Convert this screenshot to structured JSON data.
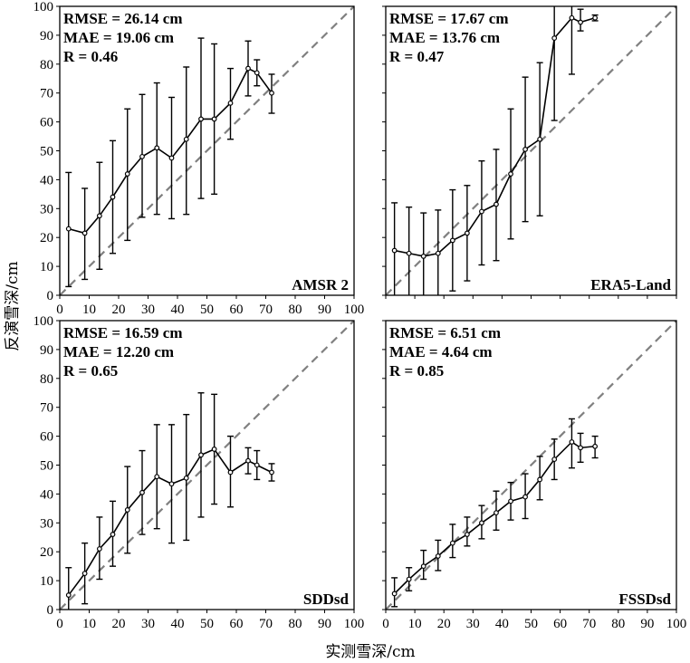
{
  "figure": {
    "xlabel": "实测雪深/cm",
    "ylabel": "反演雪深/cm"
  },
  "colors": {
    "line": "#000000",
    "reference": "#808080"
  },
  "chart_data": [
    {
      "type": "line",
      "panel_label": "AMSR 2",
      "stats": [
        "RMSE = 26.14 cm",
        "MAE = 19.06 cm",
        "R = 0.46"
      ],
      "xlim": [
        0,
        100
      ],
      "ylim": [
        0,
        100
      ],
      "xticks": [
        "0",
        "10",
        "20",
        "30",
        "40",
        "50",
        "60",
        "70",
        "80",
        "90",
        "100"
      ],
      "yticks": [
        "0",
        "10",
        "20",
        "30",
        "40",
        "50",
        "60",
        "70",
        "80",
        "90",
        "100"
      ],
      "x": [
        3,
        8.5,
        13.5,
        18,
        23,
        28,
        33,
        38,
        43,
        48,
        52.5,
        58,
        64,
        67,
        72
      ],
      "y": [
        23,
        21.5,
        27.5,
        34,
        42,
        48,
        51,
        47.5,
        54,
        61,
        61,
        66.5,
        78.5,
        77,
        70
      ],
      "err_low": [
        3,
        5.5,
        9,
        14.5,
        19,
        27,
        28,
        26.5,
        28,
        33.5,
        35,
        54,
        69,
        72.5,
        63
      ],
      "err_high": [
        42.5,
        37,
        46,
        53.5,
        64.5,
        69.5,
        73.5,
        68.5,
        79,
        89,
        87,
        78.5,
        88,
        81.5,
        76.5
      ],
      "reference_line": "1:1"
    },
    {
      "type": "line",
      "panel_label": "ERA5-Land",
      "stats": [
        "RMSE = 17.67 cm",
        "MAE = 13.76 cm",
        "R = 0.47"
      ],
      "xlim": [
        0,
        100
      ],
      "ylim": [
        0,
        100
      ],
      "xticks": [],
      "yticks": [],
      "x": [
        3,
        8,
        13,
        18,
        23,
        28,
        33,
        38,
        43,
        48,
        53,
        58,
        64,
        67,
        72
      ],
      "y": [
        15.5,
        14.5,
        13.5,
        14.5,
        19,
        21.5,
        29,
        31.5,
        42,
        50.5,
        54,
        89,
        96,
        94.5,
        96
      ],
      "err_low": [
        0,
        0,
        0,
        0,
        1.5,
        5,
        10.5,
        12,
        19.5,
        25.5,
        27.5,
        60.5,
        76.5,
        91.5,
        95
      ],
      "err_high": [
        32,
        30.5,
        28.5,
        29.5,
        36.5,
        38,
        46.5,
        50.5,
        64.5,
        75.5,
        80.5,
        100,
        100,
        99,
        97
      ],
      "reference_line": "1:1"
    },
    {
      "type": "line",
      "panel_label": "SDDsd",
      "stats": [
        "RMSE = 16.59 cm",
        "MAE = 12.20 cm",
        "R = 0.65"
      ],
      "xlim": [
        0,
        100
      ],
      "ylim": [
        0,
        100
      ],
      "xticks": [
        "0",
        "10",
        "20",
        "30",
        "40",
        "50",
        "60",
        "70",
        "80",
        "90",
        "100"
      ],
      "yticks": [
        "0",
        "10",
        "20",
        "30",
        "40",
        "50",
        "60",
        "70",
        "80",
        "90",
        "100"
      ],
      "x": [
        3,
        8.5,
        13.5,
        18,
        23,
        28,
        33,
        38,
        43,
        48,
        52.5,
        58,
        64,
        67,
        72
      ],
      "y": [
        5,
        12.5,
        21,
        26,
        34.5,
        40.5,
        46,
        43.5,
        45.5,
        53.5,
        55.5,
        47.5,
        51.5,
        50,
        47.5
      ],
      "err_low": [
        0,
        2,
        10.5,
        15,
        19.5,
        26,
        28,
        23,
        24,
        32,
        36.5,
        35.5,
        47,
        45,
        44.5
      ],
      "err_high": [
        14.5,
        23,
        32,
        37.5,
        49.5,
        55,
        64,
        64,
        67.5,
        75,
        74.5,
        60,
        56,
        55,
        50.5
      ],
      "reference_line": "1:1"
    },
    {
      "type": "line",
      "panel_label": "FSSDsd",
      "stats": [
        "RMSE = 6.51 cm",
        "MAE = 4.64 cm",
        "R = 0.85"
      ],
      "xlim": [
        0,
        100
      ],
      "ylim": [
        0,
        100
      ],
      "xticks": [
        "0",
        "10",
        "20",
        "30",
        "40",
        "50",
        "60",
        "70",
        "80",
        "90",
        "100"
      ],
      "yticks": [],
      "x": [
        3,
        8,
        13,
        18,
        23,
        28,
        33,
        38,
        43,
        48,
        53,
        58,
        64,
        67,
        72
      ],
      "y": [
        5.5,
        10.5,
        15,
        18.5,
        23,
        26,
        30,
        33.5,
        37.5,
        39,
        45,
        52,
        58,
        56,
        56.5
      ],
      "err_low": [
        1,
        6.5,
        10.5,
        13.5,
        18,
        22,
        24.5,
        27.5,
        31,
        31.5,
        38,
        45,
        49,
        51,
        52.5
      ],
      "err_high": [
        11,
        14.5,
        20.5,
        24,
        29.5,
        32,
        36,
        41,
        44,
        47,
        53,
        59,
        66,
        61,
        60
      ],
      "reference_line": "1:1"
    }
  ]
}
